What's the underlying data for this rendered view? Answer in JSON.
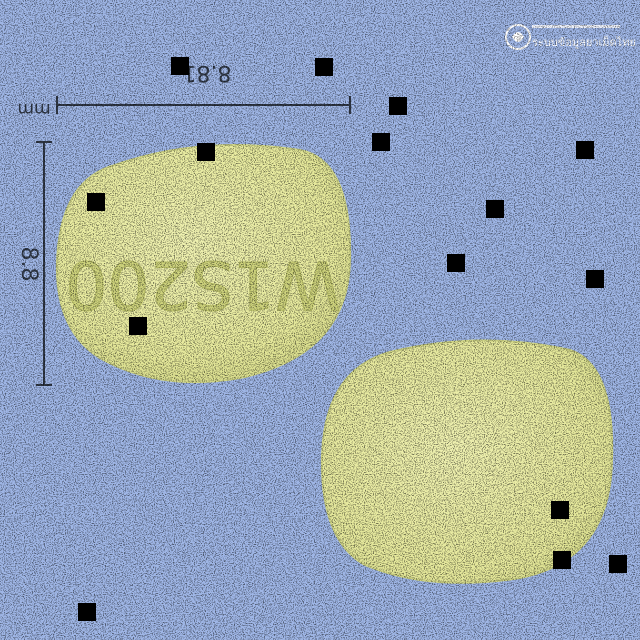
{
  "colors": {
    "background": "#9fb6e6",
    "pill": "#e8ea9e",
    "pill_shade": "#cfd482",
    "ruler": "#303846",
    "imprint": "#c5cb74",
    "noise_block": "#000000"
  },
  "measurements": {
    "width_label": "8.81",
    "height_label": "8.8",
    "unit_label": "mm"
  },
  "pills": {
    "front_imprint": "W1S200",
    "back_imprint": ""
  },
  "watermark": {
    "logo_icon": "circular-seal-icon",
    "text": "ระบบข้อมูลยาเม็ดไทย"
  }
}
